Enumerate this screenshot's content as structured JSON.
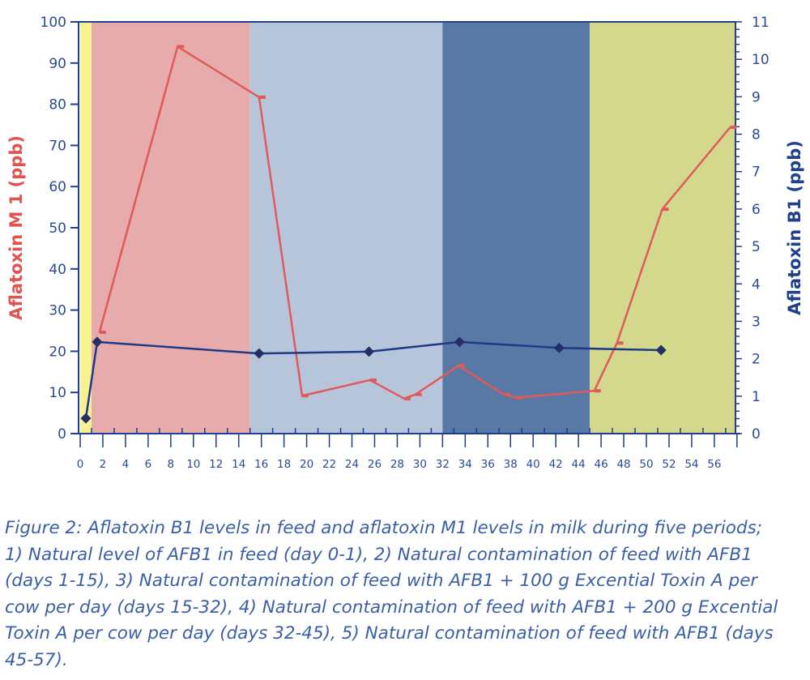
{
  "chart_data": {
    "type": "line",
    "title": "",
    "xlabel": "",
    "xlim": [
      0,
      58
    ],
    "x_ticks": [
      0,
      2,
      4,
      6,
      8,
      10,
      12,
      14,
      16,
      18,
      20,
      22,
      24,
      26,
      28,
      30,
      32,
      34,
      36,
      38,
      40,
      42,
      44,
      46,
      48,
      50,
      52,
      54,
      56
    ],
    "y_left": {
      "label": "Aflatoxin M 1 (ppb)",
      "lim": [
        0,
        100
      ],
      "ticks": [
        0,
        10,
        20,
        30,
        40,
        50,
        60,
        70,
        80,
        90,
        100
      ]
    },
    "y_right": {
      "label": "Aflatoxin B1  (ppb)",
      "lim": [
        0,
        11
      ],
      "ticks": [
        0,
        1,
        2,
        3,
        4,
        5,
        6,
        7,
        8,
        9,
        10,
        11
      ]
    },
    "periods": [
      {
        "start": 0,
        "end": 1,
        "color": "#f9f290"
      },
      {
        "start": 1,
        "end": 15,
        "color": "#e8abab"
      },
      {
        "start": 15,
        "end": 32,
        "color": "#b6c5da"
      },
      {
        "start": 32,
        "end": 45,
        "color": "#5879a6"
      },
      {
        "start": 45,
        "end": 58,
        "color": "#d3d88c"
      }
    ],
    "series": [
      {
        "name": "Aflatoxin M1 (milk)",
        "axis": "left",
        "color": "#e05a5a",
        "x": [
          1.7,
          8.6,
          15.8,
          19.6,
          25.6,
          28.6,
          29.6,
          33.4,
          37.4,
          38.5,
          45.4,
          47.4,
          51.4,
          57.4
        ],
        "y": [
          24.6,
          94,
          81.7,
          9.2,
          13,
          8.5,
          9.5,
          16.5,
          9.5,
          8.7,
          10.4,
          22,
          54.5,
          74.4
        ]
      },
      {
        "name": "Aflatoxin B1 (feed)",
        "axis": "right",
        "color": "#1c3a85",
        "marker_color": "#252e66",
        "x": [
          0.5,
          1.5,
          15.8,
          25.5,
          33.5,
          42.3,
          51.3
        ],
        "y": [
          0.41,
          2.45,
          2.14,
          2.19,
          2.45,
          2.29,
          2.23
        ]
      }
    ]
  },
  "caption": "Figure 2: Aflatoxin B1 levels in feed and aflatoxin M1 levels in milk during five periods; 1) Natural level of AFB1 in feed (day 0-1), 2) Natural contamination of feed with AFB1 (days 1-15), 3) Natural contamination of feed with AFB1 + 100 g Excential Toxin A per cow per day (days 15-32), 4) Natural contamination of feed with AFB1 + 200 g Excential Toxin A per cow per day (days 32-45), 5) Natural contamination of feed with AFB1 (days 45-57)."
}
